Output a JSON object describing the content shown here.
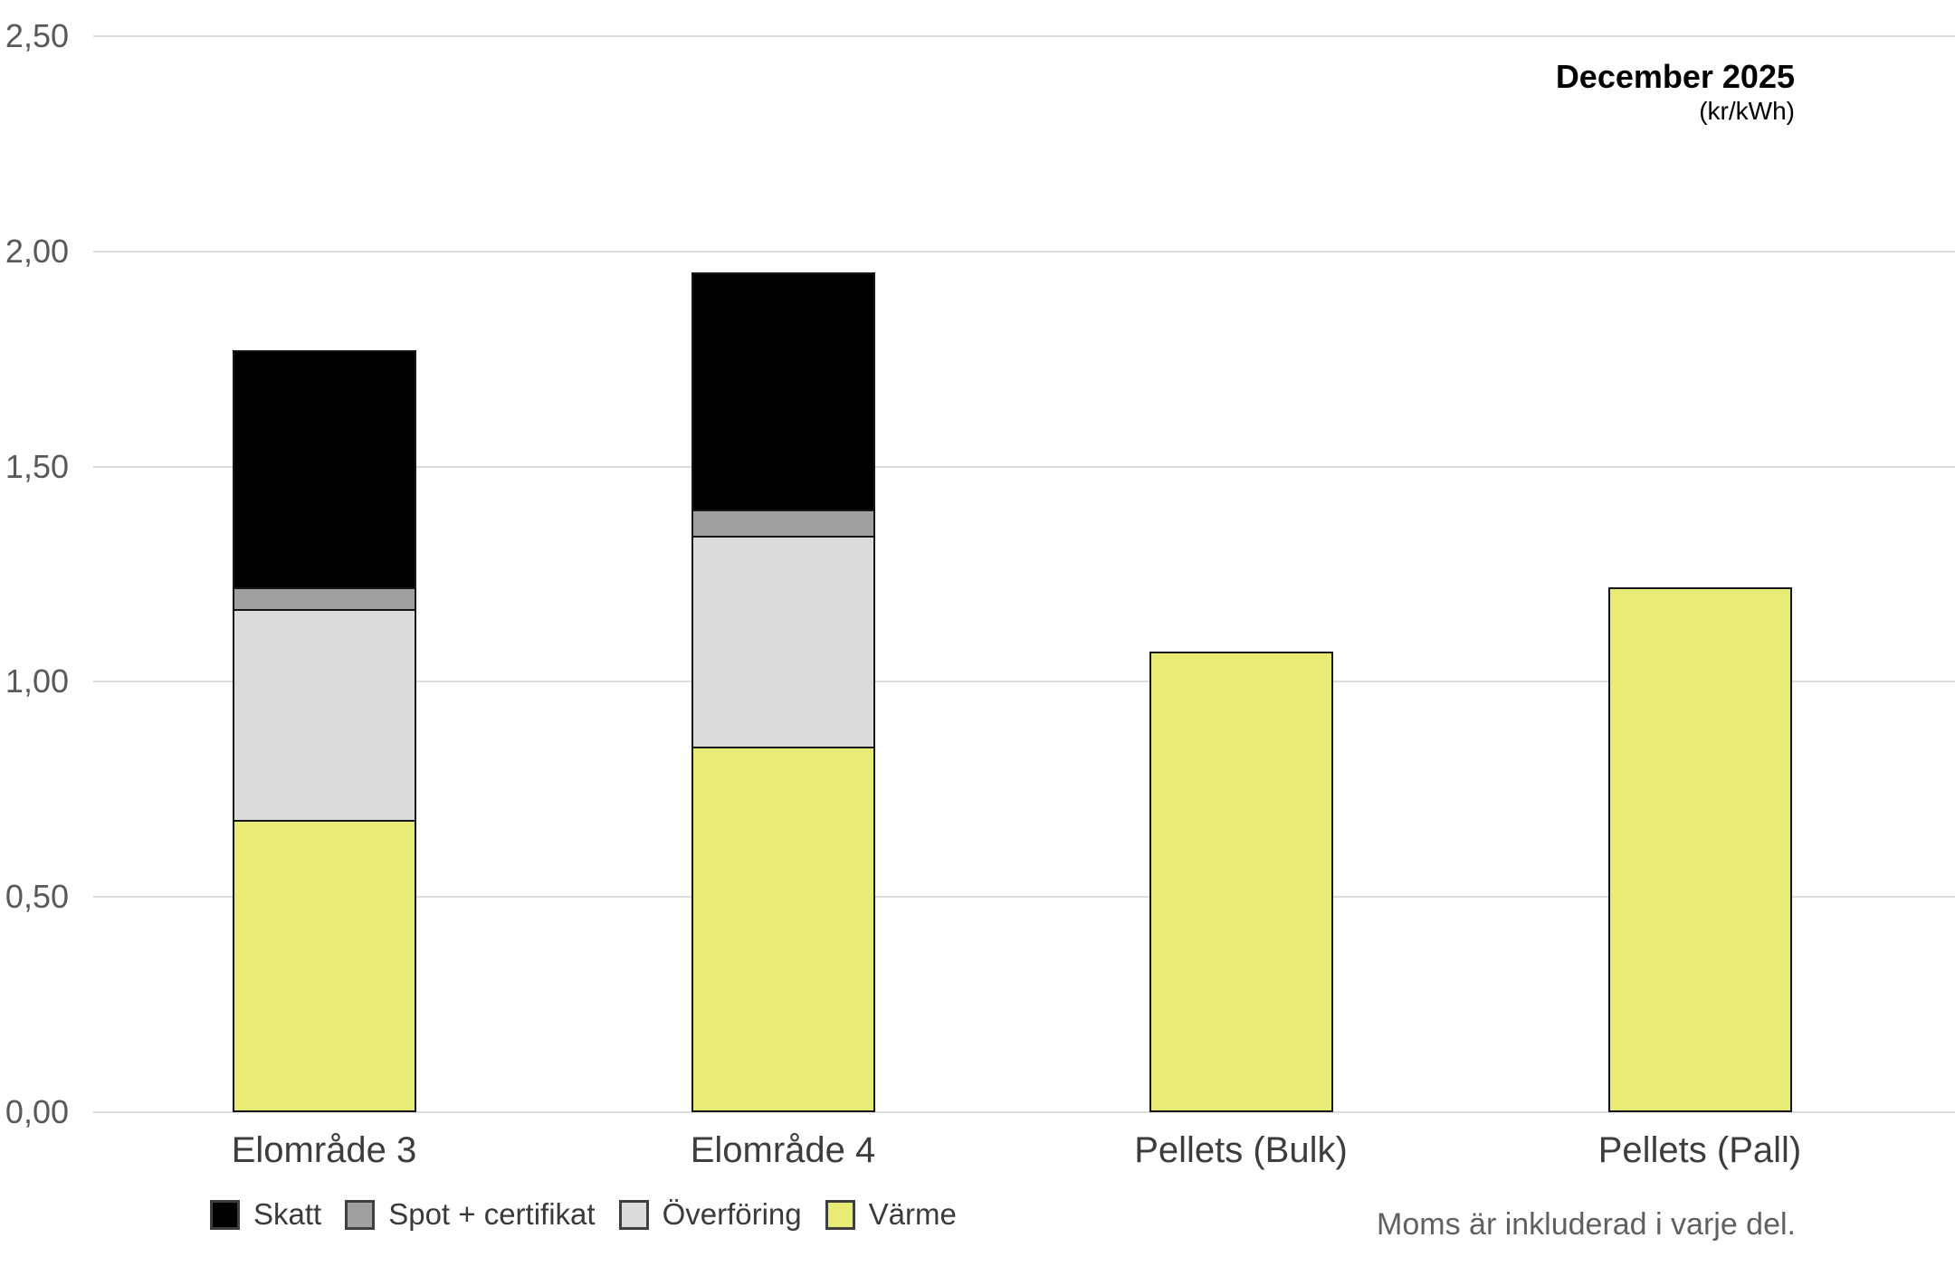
{
  "title": {
    "line1": "December 2025",
    "line2": "(kr/kWh)"
  },
  "note": "Moms är inkluderad i varje del.",
  "y_axis": {
    "ticks": [
      {
        "label": "2,50",
        "value": 2.5
      },
      {
        "label": "2,00",
        "value": 2.0
      },
      {
        "label": "1,50",
        "value": 1.5
      },
      {
        "label": "1,00",
        "value": 1.0
      },
      {
        "label": "0,50",
        "value": 0.5
      },
      {
        "label": "0,00",
        "value": 0.0
      }
    ]
  },
  "legend": {
    "items": [
      {
        "label": "Skatt",
        "color": "#000000"
      },
      {
        "label": "Spot + certifikat",
        "color": "#a0a0a0"
      },
      {
        "label": "Överföring",
        "color": "#dbdbdb"
      },
      {
        "label": "Värme",
        "color": "#e8ec74"
      }
    ]
  },
  "chart_data": {
    "type": "bar",
    "stacked": true,
    "title": "December 2025 (kr/kWh)",
    "ylabel": "kr/kWh",
    "ylim": [
      0,
      2.5
    ],
    "grid": true,
    "legend_position": "bottom",
    "categories": [
      "Elområde 3",
      "Elområde 4",
      "Pellets (Bulk)",
      "Pellets (Pall)"
    ],
    "series": [
      {
        "name": "Värme",
        "color": "#e8ec74",
        "values": [
          0.68,
          0.85,
          1.07,
          1.22
        ]
      },
      {
        "name": "Överföring",
        "color": "#dbdbdb",
        "values": [
          0.49,
          0.49,
          0.0,
          0.0
        ]
      },
      {
        "name": "Spot + certifikat",
        "color": "#a0a0a0",
        "values": [
          0.05,
          0.06,
          0.0,
          0.0
        ]
      },
      {
        "name": "Skatt",
        "color": "#000000",
        "values": [
          0.55,
          0.55,
          0.0,
          0.0
        ]
      }
    ],
    "totals": [
      1.77,
      1.95,
      1.07,
      1.22
    ],
    "note": "Moms är inkluderad i varje del."
  }
}
